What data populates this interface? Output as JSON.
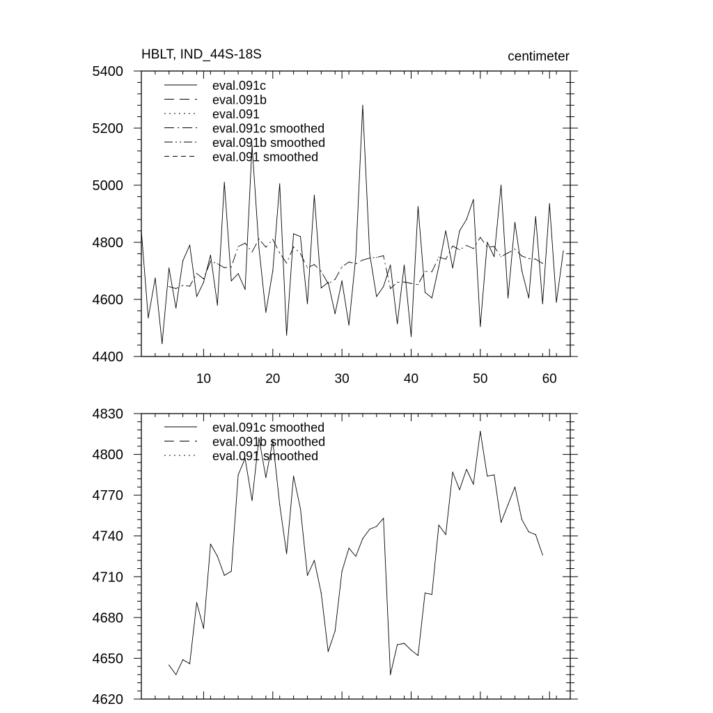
{
  "chart_data": [
    {
      "type": "line",
      "title": "HBLT, IND_44S-18S",
      "units": "centimeter",
      "xlabel": "",
      "ylabel": "",
      "xlim": [
        1,
        63
      ],
      "ylim": [
        4400,
        5400
      ],
      "xticks": [
        10,
        20,
        30,
        40,
        50,
        60
      ],
      "yticks": [
        4400,
        4600,
        4800,
        5000,
        5200,
        5400
      ],
      "ytick_labels": [
        "4400",
        "4600",
        "4800",
        "5000",
        "5200",
        "5400"
      ],
      "xtick_labels": [
        "10",
        "20",
        "30",
        "40",
        "50",
        "60"
      ],
      "legend_position": "top-left",
      "legend": [
        {
          "label": "eval.091c",
          "dash": "solid"
        },
        {
          "label": "eval.091b",
          "dash": "longdash"
        },
        {
          "label": "eval.091",
          "dash": "dot"
        },
        {
          "label": "eval.091c smoothed",
          "dash": "dashdot"
        },
        {
          "label": "eval.091b smoothed",
          "dash": "dashdotdot"
        },
        {
          "label": "eval.091 smoothed",
          "dash": "shortdash"
        }
      ],
      "series": [
        {
          "name": "eval.091c",
          "dash": "solid",
          "x": [
            1,
            2,
            3,
            4,
            5,
            6,
            7,
            8,
            9,
            10,
            11,
            12,
            13,
            14,
            15,
            16,
            17,
            18,
            19,
            20,
            21,
            22,
            23,
            24,
            25,
            26,
            27,
            28,
            29,
            30,
            31,
            32,
            33,
            34,
            35,
            36,
            37,
            38,
            39,
            40,
            41,
            42,
            43,
            44,
            45,
            46,
            47,
            48,
            49,
            50,
            51,
            52,
            53,
            54,
            55,
            56,
            57,
            58,
            59,
            60,
            61,
            62
          ],
          "y": [
            4840,
            4535,
            4675,
            4445,
            4710,
            4570,
            4735,
            4790,
            4610,
            4660,
            4755,
            4580,
            5010,
            4665,
            4690,
            4635,
            5140,
            4780,
            4555,
            4700,
            5005,
            4475,
            4830,
            4820,
            4585,
            4965,
            4640,
            4660,
            4550,
            4665,
            4510,
            4750,
            5280,
            4760,
            4610,
            4645,
            4720,
            4515,
            4720,
            4470,
            4925,
            4625,
            4605,
            4715,
            4840,
            4710,
            4840,
            4880,
            4950,
            4505,
            4800,
            4750,
            5000,
            4605,
            4870,
            4700,
            4605,
            4890,
            4585,
            4935,
            4590,
            4770
          ]
        },
        {
          "name": "eval.091c smoothed",
          "dash": "dashdot",
          "x": [
            5,
            6,
            7,
            8,
            9,
            10,
            11,
            12,
            13,
            14,
            15,
            16,
            17,
            18,
            19,
            20,
            21,
            22,
            23,
            24,
            25,
            26,
            27,
            28,
            29,
            30,
            31,
            32,
            33,
            34,
            35,
            36,
            37,
            38,
            39,
            40,
            41,
            42,
            43,
            44,
            45,
            46,
            47,
            48,
            49,
            50,
            51,
            52,
            53,
            54,
            55,
            56,
            57,
            58,
            59
          ],
          "y": [
            4645,
            4638,
            4649,
            4646,
            4691,
            4672,
            4734,
            4725,
            4711,
            4714,
            4785,
            4797,
            4766,
            4812,
            4783,
            4810,
            4763,
            4727,
            4784,
            4760,
            4711,
            4722,
            4698,
            4655,
            4670,
            4714,
            4731,
            4725,
            4738,
            4745,
            4747,
            4753,
            4638,
            4660,
            4661,
            4656,
            4652,
            4698,
            4697,
            4748,
            4741,
            4787,
            4774,
            4789,
            4778,
            4817,
            4784,
            4785,
            4750,
            4763,
            4776,
            4752,
            4743,
            4741,
            4726
          ]
        }
      ]
    },
    {
      "type": "line",
      "title": "",
      "xlabel": "",
      "ylabel": "",
      "xlim": [
        1,
        63
      ],
      "ylim": [
        4620,
        4830
      ],
      "xticks": [
        10,
        20,
        30,
        40,
        50,
        60
      ],
      "yticks": [
        4620,
        4650,
        4680,
        4710,
        4740,
        4770,
        4800,
        4830
      ],
      "ytick_labels": [
        "4620",
        "4650",
        "4680",
        "4710",
        "4740",
        "4770",
        "4800",
        "4830"
      ],
      "xtick_labels": [],
      "legend_position": "top-left",
      "legend": [
        {
          "label": "eval.091c smoothed",
          "dash": "solid"
        },
        {
          "label": "eval.091b smoothed",
          "dash": "longdash"
        },
        {
          "label": "eval.091 smoothed",
          "dash": "dot"
        }
      ],
      "series": [
        {
          "name": "eval.091c smoothed",
          "dash": "solid",
          "x": [
            5,
            6,
            7,
            8,
            9,
            10,
            11,
            12,
            13,
            14,
            15,
            16,
            17,
            18,
            19,
            20,
            21,
            22,
            23,
            24,
            25,
            26,
            27,
            28,
            29,
            30,
            31,
            32,
            33,
            34,
            35,
            36,
            37,
            38,
            39,
            40,
            41,
            42,
            43,
            44,
            45,
            46,
            47,
            48,
            49,
            50,
            51,
            52,
            53,
            54,
            55,
            56,
            57,
            58,
            59
          ],
          "y": [
            4645,
            4638,
            4649,
            4646,
            4691,
            4672,
            4734,
            4725,
            4711,
            4714,
            4785,
            4797,
            4766,
            4812,
            4783,
            4810,
            4763,
            4727,
            4784,
            4760,
            4711,
            4722,
            4698,
            4655,
            4670,
            4714,
            4731,
            4725,
            4738,
            4745,
            4747,
            4753,
            4638,
            4660,
            4661,
            4656,
            4652,
            4698,
            4697,
            4748,
            4741,
            4787,
            4774,
            4789,
            4778,
            4817,
            4784,
            4785,
            4750,
            4763,
            4776,
            4752,
            4743,
            4741,
            4726
          ]
        }
      ]
    }
  ]
}
